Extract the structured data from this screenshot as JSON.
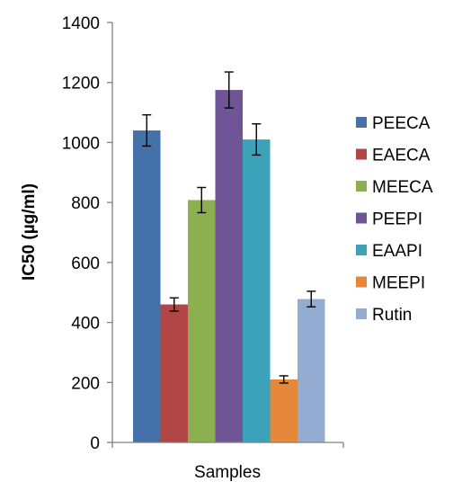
{
  "chart_data": {
    "type": "bar",
    "categories": [
      "Samples"
    ],
    "xlabel": "Samples",
    "ylabel": "IC50 (µg/ml)",
    "ylim": [
      0,
      1400
    ],
    "yticks": [
      0,
      200,
      400,
      600,
      800,
      1000,
      1200,
      1400
    ],
    "grid": false,
    "legend_position": "right",
    "series": [
      {
        "name": "PEECA",
        "value": 1040,
        "error": 52,
        "color": "#4472A8"
      },
      {
        "name": "EAECA",
        "value": 460,
        "error": 22,
        "color": "#B24645"
      },
      {
        "name": "MEECA",
        "value": 808,
        "error": 42,
        "color": "#8CAF4F"
      },
      {
        "name": "PEEPI",
        "value": 1175,
        "error": 60,
        "color": "#6F5596"
      },
      {
        "name": "EAAPI",
        "value": 1010,
        "error": 52,
        "color": "#3CA2B9"
      },
      {
        "name": "MEEPI",
        "value": 210,
        "error": 12,
        "color": "#E5883C"
      },
      {
        "name": "Rutin",
        "value": 478,
        "error": 26,
        "color": "#94ABD2"
      }
    ]
  }
}
